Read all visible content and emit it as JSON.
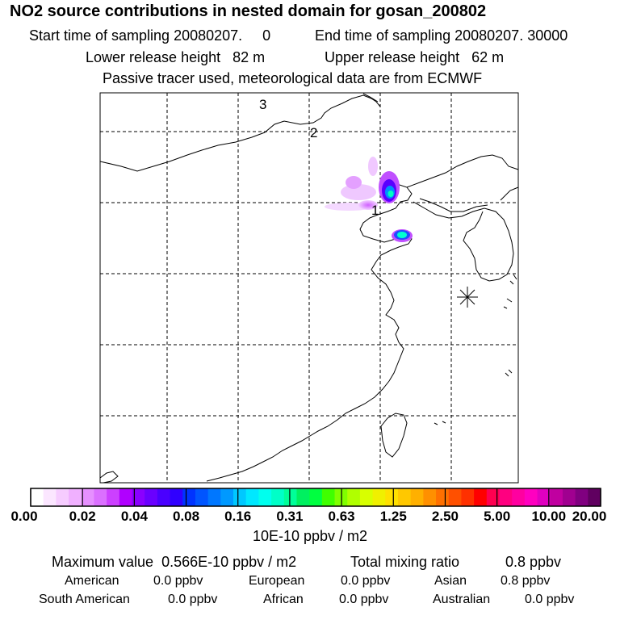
{
  "header": {
    "title": "NO2 source contributions in nested domain for gosan_200802",
    "start_label": "Start time of sampling",
    "start_value": "20080207.     0",
    "end_label": "End time of sampling",
    "end_value": "20080207. 30000",
    "lower_label": "Lower release height",
    "lower_value": "82 m",
    "upper_label": "Upper release height",
    "upper_value": "62 m",
    "note": "Passive tracer used, meteorological data are from ECMWF"
  },
  "map": {
    "point_labels": [
      "3",
      "2",
      "1"
    ],
    "receptor_symbol": "star-marker"
  },
  "colorbar": {
    "ticks": [
      "0.00",
      "0.02",
      "0.04",
      "0.08",
      "0.16",
      "0.31",
      "0.63",
      "1.25",
      "2.50",
      "5.00",
      "10.00",
      "20.00"
    ],
    "colors": [
      "#ffffff",
      "#fbe6ff",
      "#f6ccff",
      "#f0b0ff",
      "#e690ff",
      "#db70ff",
      "#cc40ff",
      "#b000ff",
      "#8a00ff",
      "#6a00ff",
      "#4a00ff",
      "#3000ff",
      "#0033ff",
      "#0055ff",
      "#0077ff",
      "#0099ff",
      "#00c8ff",
      "#00e8ff",
      "#00ffee",
      "#00ffc8",
      "#00ff99",
      "#00f060",
      "#00ff40",
      "#40ff00",
      "#80ff00",
      "#b0ff00",
      "#d8ff00",
      "#f0f000",
      "#ffe000",
      "#ffc800",
      "#ffb000",
      "#ff9000",
      "#ff7000",
      "#ff5000",
      "#ff3000",
      "#ff0000",
      "#ff0050",
      "#ff0080",
      "#ff00a0",
      "#ff00c0",
      "#e000c0",
      "#c000a0",
      "#a00090",
      "#800080",
      "#600060"
    ],
    "unit": "10E-10 ppbv / m2"
  },
  "summary": {
    "max_label": "Maximum value",
    "max_value": "0.566E-10 ppbv / m2",
    "total_label": "Total mixing ratio",
    "total_value": "0.8 ppbv",
    "regions": [
      {
        "name": "American",
        "value": "0.0 ppbv"
      },
      {
        "name": "European",
        "value": "0.0 ppbv"
      },
      {
        "name": "Asian",
        "value": "0.8 ppbv"
      },
      {
        "name": "South American",
        "value": "0.0 ppbv"
      },
      {
        "name": "African",
        "value": "0.0 ppbv"
      },
      {
        "name": "Australian",
        "value": "0.0 ppbv"
      }
    ]
  }
}
